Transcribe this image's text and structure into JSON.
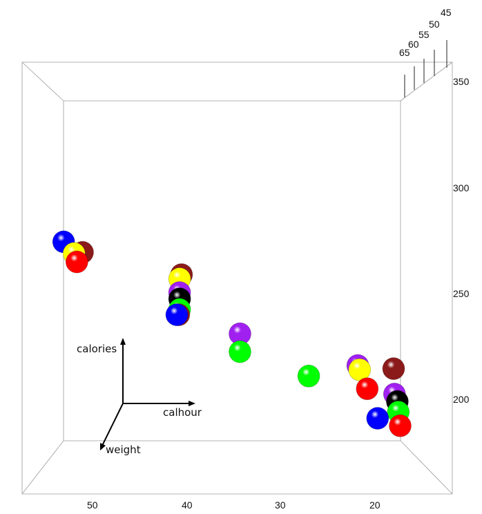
{
  "chart_data": {
    "type": "scatter",
    "title": "",
    "axes": {
      "x": {
        "label": "calhour",
        "ticks": [
          "50",
          "40",
          "30",
          "20"
        ],
        "direction": "decreasing left to right"
      },
      "y": {
        "label": "calories",
        "ticks": [
          "200",
          "250",
          "300",
          "350"
        ]
      },
      "z": {
        "label": "weight",
        "ticks": [
          "65",
          "60",
          "55",
          "50",
          "45"
        ]
      }
    },
    "grid": false,
    "legend": "none",
    "points": [
      {
        "calhour": 53.5,
        "calories": 349,
        "color": "#0000ff"
      },
      {
        "calhour": 51.5,
        "calories": 339,
        "color": "#8b1a1a"
      },
      {
        "calhour": 52.4,
        "calories": 338,
        "color": "#ffff00"
      },
      {
        "calhour": 52.1,
        "calories": 330,
        "color": "#ff0000"
      },
      {
        "calhour": 41.0,
        "calories": 318,
        "color": "#8b1a1a"
      },
      {
        "calhour": 41.2,
        "calories": 314,
        "color": "#ffff00"
      },
      {
        "calhour": 41.2,
        "calories": 301,
        "color": "#a020f0"
      },
      {
        "calhour": 41.2,
        "calories": 295,
        "color": "#000000"
      },
      {
        "calhour": 41.2,
        "calories": 285,
        "color": "#00ff00"
      },
      {
        "calhour": 41.3,
        "calories": 280,
        "color": "#8b1a1a"
      },
      {
        "calhour": 41.5,
        "calories": 280,
        "color": "#0000ff"
      },
      {
        "calhour": 34.8,
        "calories": 262,
        "color": "#a020f0"
      },
      {
        "calhour": 34.8,
        "calories": 245,
        "color": "#00ff00"
      },
      {
        "calhour": 27.5,
        "calories": 222,
        "color": "#00ff00"
      },
      {
        "calhour": 22.3,
        "calories": 232,
        "color": "#a020f0"
      },
      {
        "calhour": 22.1,
        "calories": 228,
        "color": "#ffff00"
      },
      {
        "calhour": 18.5,
        "calories": 229,
        "color": "#8b1a1a"
      },
      {
        "calhour": 21.3,
        "calories": 210,
        "color": "#ff0000"
      },
      {
        "calhour": 18.4,
        "calories": 205,
        "color": "#a020f0"
      },
      {
        "calhour": 18.1,
        "calories": 198,
        "color": "#000000"
      },
      {
        "calhour": 18.0,
        "calories": 188,
        "color": "#00ff00"
      },
      {
        "calhour": 20.2,
        "calories": 182,
        "color": "#0000ff"
      },
      {
        "calhour": 17.8,
        "calories": 175,
        "color": "#ff0000"
      }
    ]
  }
}
